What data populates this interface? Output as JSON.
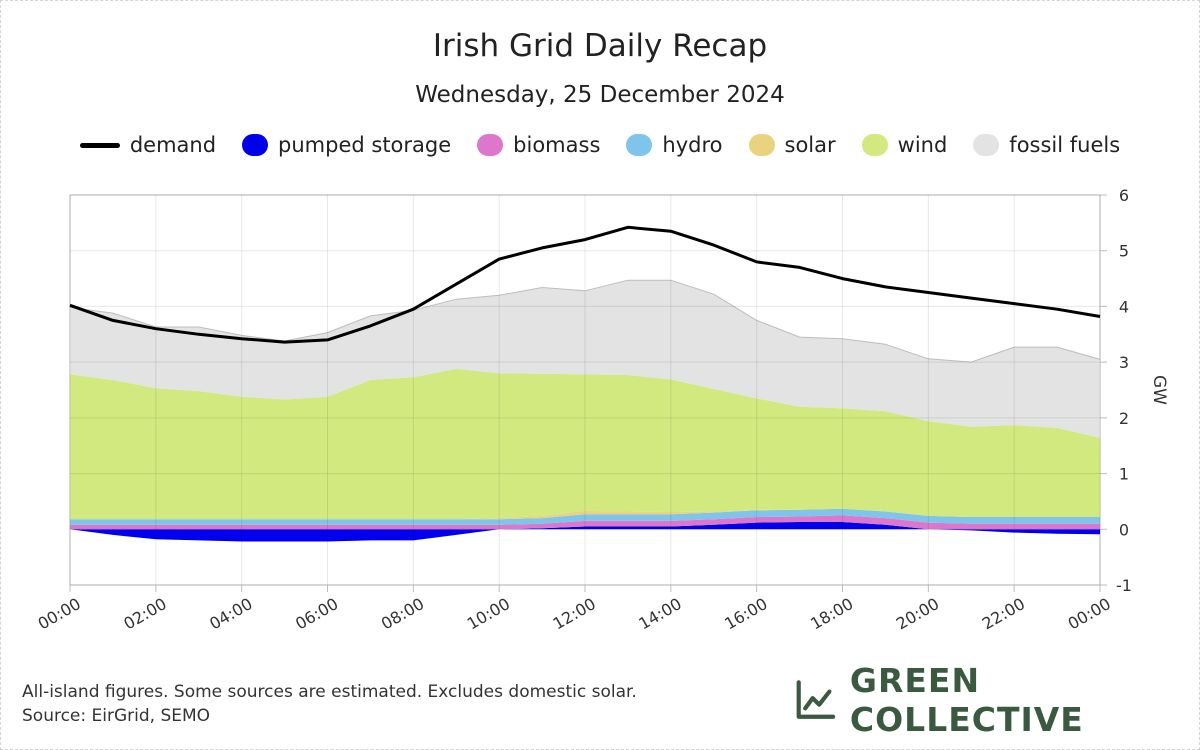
{
  "chart_data": {
    "type": "area",
    "title": "Irish Grid Daily Recap",
    "subtitle": "Wednesday, 25 December 2024",
    "ylabel": "GW",
    "xlabel": "",
    "ylim": [
      -1,
      6
    ],
    "yticks": [
      6,
      5,
      4,
      3,
      2,
      1,
      0,
      -1
    ],
    "xticks": [
      "00:00",
      "02:00",
      "04:00",
      "06:00",
      "08:00",
      "10:00",
      "12:00",
      "14:00",
      "16:00",
      "18:00",
      "20:00",
      "22:00",
      "00:00"
    ],
    "x_hours": [
      0,
      1,
      2,
      3,
      4,
      5,
      6,
      7,
      8,
      9,
      10,
      11,
      12,
      13,
      14,
      15,
      16,
      17,
      18,
      19,
      20,
      21,
      22,
      23,
      24
    ],
    "grid": true,
    "legend": [
      {
        "name": "demand",
        "color": "#000000",
        "kind": "line"
      },
      {
        "name": "pumped storage",
        "color": "#0000ee",
        "kind": "area"
      },
      {
        "name": "biomass",
        "color": "#dd77cc",
        "kind": "area"
      },
      {
        "name": "hydro",
        "color": "#7fc4ea",
        "kind": "area"
      },
      {
        "name": "solar",
        "color": "#e9d37e",
        "kind": "area"
      },
      {
        "name": "wind",
        "color": "#d1e97f",
        "kind": "area"
      },
      {
        "name": "fossil fuels",
        "color": "#e3e3e3",
        "kind": "area"
      }
    ],
    "series": [
      {
        "name": "demand",
        "values": [
          4.02,
          3.75,
          3.6,
          3.5,
          3.42,
          3.36,
          3.4,
          3.65,
          3.95,
          4.4,
          4.85,
          5.05,
          5.2,
          5.42,
          5.35,
          5.1,
          4.8,
          4.7,
          4.5,
          4.35,
          4.25,
          4.15,
          4.05,
          3.95,
          3.82
        ]
      },
      {
        "name": "pumped storage",
        "values": [
          0.0,
          -0.1,
          -0.18,
          -0.2,
          -0.22,
          -0.22,
          -0.22,
          -0.2,
          -0.2,
          -0.1,
          0.0,
          0.02,
          0.05,
          0.05,
          0.05,
          0.08,
          0.12,
          0.13,
          0.13,
          0.08,
          0.0,
          -0.02,
          -0.06,
          -0.08,
          -0.09
        ]
      },
      {
        "name": "biomass",
        "values": [
          0.08,
          0.08,
          0.08,
          0.08,
          0.08,
          0.08,
          0.08,
          0.08,
          0.08,
          0.08,
          0.08,
          0.08,
          0.1,
          0.1,
          0.1,
          0.1,
          0.1,
          0.1,
          0.12,
          0.12,
          0.12,
          0.1,
          0.1,
          0.1,
          0.1
        ]
      },
      {
        "name": "hydro",
        "values": [
          0.1,
          0.1,
          0.1,
          0.1,
          0.1,
          0.1,
          0.1,
          0.1,
          0.1,
          0.1,
          0.1,
          0.1,
          0.12,
          0.12,
          0.12,
          0.12,
          0.12,
          0.12,
          0.12,
          0.12,
          0.12,
          0.12,
          0.12,
          0.12,
          0.12
        ]
      },
      {
        "name": "solar",
        "values": [
          0,
          0,
          0,
          0,
          0,
          0,
          0,
          0,
          0,
          0,
          0.02,
          0.04,
          0.06,
          0.05,
          0.04,
          0.02,
          0.01,
          0,
          0,
          0,
          0,
          0,
          0,
          0,
          0
        ]
      },
      {
        "name": "wind",
        "values": [
          2.6,
          2.5,
          2.35,
          2.3,
          2.2,
          2.15,
          2.2,
          2.5,
          2.55,
          2.7,
          2.6,
          2.55,
          2.45,
          2.45,
          2.38,
          2.2,
          2.0,
          1.85,
          1.8,
          1.8,
          1.7,
          1.62,
          1.65,
          1.6,
          1.42
        ]
      },
      {
        "name": "fossil fuels",
        "values": [
          1.2,
          1.2,
          1.1,
          1.15,
          1.1,
          1.05,
          1.15,
          1.15,
          1.2,
          1.25,
          1.4,
          1.55,
          1.5,
          1.7,
          1.78,
          1.7,
          1.4,
          1.25,
          1.25,
          1.2,
          1.12,
          1.16,
          1.4,
          1.45,
          1.41
        ]
      }
    ],
    "notes": [
      "All-island figures. Some sources are estimated. Excludes domestic solar.",
      "Source: EirGrid, SEMO"
    ]
  },
  "brand": {
    "name": "GREEN COLLECTIVE",
    "color": "#3a5a40"
  }
}
